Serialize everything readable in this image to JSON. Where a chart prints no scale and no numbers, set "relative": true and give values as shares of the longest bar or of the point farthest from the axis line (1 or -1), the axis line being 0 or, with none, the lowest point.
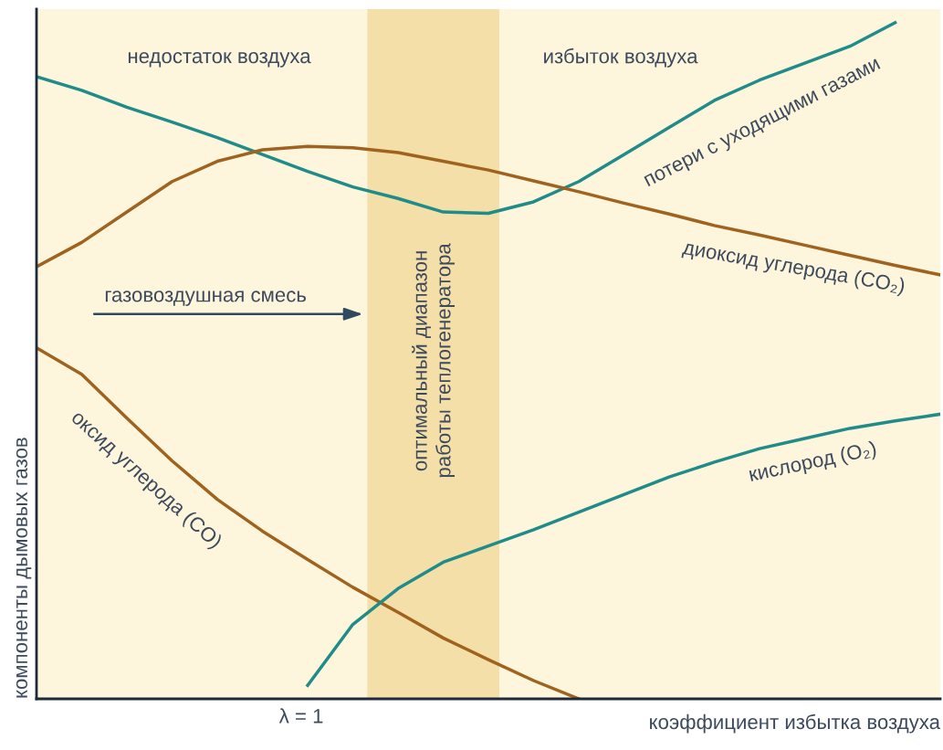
{
  "chart_data": {
    "type": "line",
    "relative": true,
    "xlabel": "коэффициент избытка воздуха",
    "ylabel": "компоненты дымовых газов",
    "categories": [
      null,
      null,
      null,
      null,
      null,
      null,
      null,
      null,
      null,
      null,
      null,
      null,
      null,
      null,
      null,
      null,
      null,
      null,
      null,
      null,
      null
    ],
    "legend": false,
    "marker": "none",
    "line_style": "solid",
    "annotations": [
      "недостаток воздуха",
      "избыток воздуха",
      "газовоздушная смесь",
      "λ = 1",
      "оптимальный диапазон\nработы теплогенератора"
    ],
    "series": [
      {
        "name": "потери с уходящими газами",
        "color": "#1f8c8a",
        "values": [
          0.92,
          0.9,
          0.875,
          0.853,
          0.83,
          0.805,
          0.78,
          0.757,
          0.74,
          0.72,
          0.718,
          0.735,
          0.765,
          0.805,
          0.845,
          0.885,
          0.915,
          0.94,
          0.965,
          1.0,
          null
        ]
      },
      {
        "name": "диоксид углерода (CO₂)",
        "color": "#a0621f",
        "values": [
          0.639,
          0.675,
          0.72,
          0.765,
          0.795,
          0.812,
          0.817,
          0.815,
          0.808,
          0.795,
          0.782,
          0.766,
          0.75,
          0.733,
          0.717,
          0.7,
          0.686,
          0.671,
          0.656,
          0.641,
          0.627
        ]
      },
      {
        "name": "оксид углерода (CO)",
        "color": "#a0621f",
        "values": [
          0.519,
          0.48,
          0.415,
          0.352,
          0.295,
          0.248,
          0.206,
          0.165,
          0.128,
          0.09,
          0.058,
          0.027,
          0.0,
          null,
          null,
          null,
          null,
          null,
          null,
          null,
          null
        ]
      },
      {
        "name": "кислород (O₂)",
        "color": "#1f8c8a",
        "values": [
          null,
          null,
          null,
          null,
          null,
          null,
          0.02,
          0.11,
          0.163,
          0.202,
          0.226,
          0.25,
          0.276,
          0.302,
          0.328,
          0.35,
          0.37,
          0.385,
          0.4,
          0.411,
          0.421
        ]
      }
    ]
  }
}
